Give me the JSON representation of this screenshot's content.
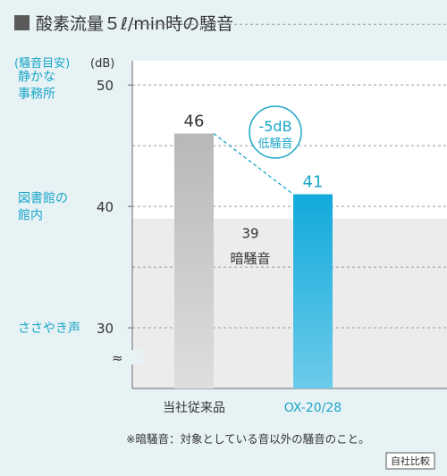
{
  "header": {
    "title": "酸素流量５ℓ/min時の騒音"
  },
  "chart_data": {
    "type": "bar",
    "title": "酸素流量５ℓ/min時の騒音",
    "ylabel": "(dB)",
    "scale_label": "(騒音目安)",
    "ylim": [
      25,
      52
    ],
    "yticks": [
      30,
      40,
      50
    ],
    "grid": true,
    "categories": [
      "当社従来品",
      "OX-20/28"
    ],
    "values": [
      46,
      41
    ],
    "bar_colors": [
      "#b8b8b8",
      "#1ab0dd"
    ],
    "value_colors": [
      "#333333",
      "#1aa6c8"
    ],
    "category_colors": [
      "#333333",
      "#1aa6c8"
    ],
    "background_noise": {
      "value": 39,
      "label": "暗騒音"
    },
    "reference_levels": [
      {
        "value": 50,
        "lines": [
          "静かな",
          "事務所"
        ]
      },
      {
        "value": 40,
        "lines": [
          "図書館の",
          "館内"
        ]
      },
      {
        "value": 30,
        "lines": [
          "ささやき声"
        ]
      }
    ],
    "reduction": {
      "lines": [
        "-5dB",
        "低騒音"
      ]
    },
    "axis_break": "≈",
    "accent_color": "#1aa6c8"
  },
  "footer": {
    "note": "※暗騒音：対象としている音以外の騒音のこと。",
    "badge": "自社比較"
  }
}
